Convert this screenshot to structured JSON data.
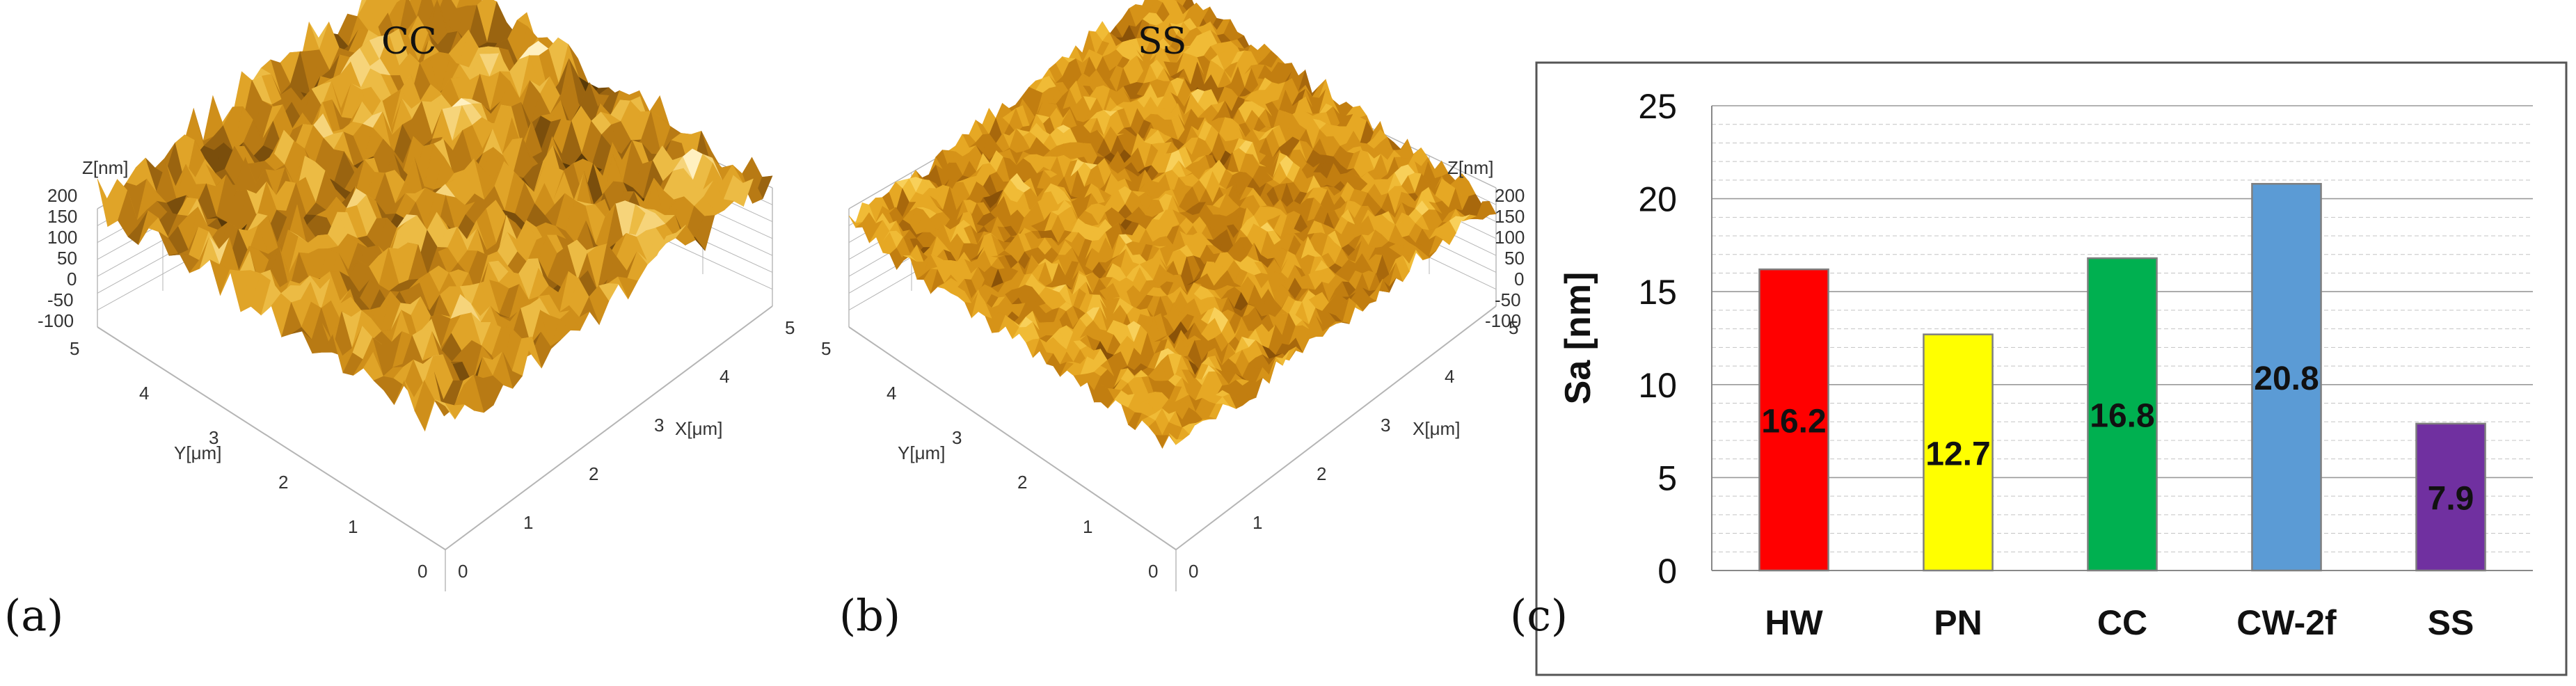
{
  "panels": {
    "a": {
      "title": "CC",
      "letter": "(a)",
      "z_label": "Z[nm]",
      "z_ticks": [
        "200",
        "150",
        "100",
        "50",
        "0",
        "-50",
        "-100"
      ],
      "y_label": "Y[μm]",
      "y_ticks": [
        "5",
        "4",
        "3",
        "2",
        "1",
        "0"
      ],
      "x_label": "X[μm]",
      "x_ticks": [
        "0",
        "1",
        "2",
        "3",
        "4",
        "5"
      ]
    },
    "b": {
      "title": "SS",
      "letter": "(b)",
      "z_label": "Z[nm]",
      "z_ticks": [
        "200",
        "150",
        "100",
        "50",
        "0",
        "-50",
        "-100"
      ],
      "y_label": "Y[μm]",
      "y_ticks": [
        "5",
        "4",
        "3",
        "2",
        "1",
        "0"
      ],
      "x_label": "X[μm]",
      "x_ticks": [
        "0",
        "1",
        "2",
        "3",
        "4",
        "5"
      ]
    },
    "c": {
      "letter": "(c)"
    }
  },
  "chart_data": {
    "type": "bar",
    "categories": [
      "HW",
      "PN",
      "CC",
      "CW-2f",
      "SS"
    ],
    "values": [
      16.2,
      12.7,
      16.8,
      20.8,
      7.9
    ],
    "value_labels": [
      "16.2",
      "12.7",
      "16.8",
      "20.8",
      "7.9"
    ],
    "colors": [
      "#ff0000",
      "#ffff00",
      "#00b050",
      "#5b9bd5",
      "#7030a0"
    ],
    "ylabel": "Sa [nm]",
    "ylim": [
      0,
      25
    ],
    "yticks": [
      0,
      5,
      10,
      15,
      20,
      25
    ],
    "minor_grid_step": 1,
    "grid": true
  }
}
